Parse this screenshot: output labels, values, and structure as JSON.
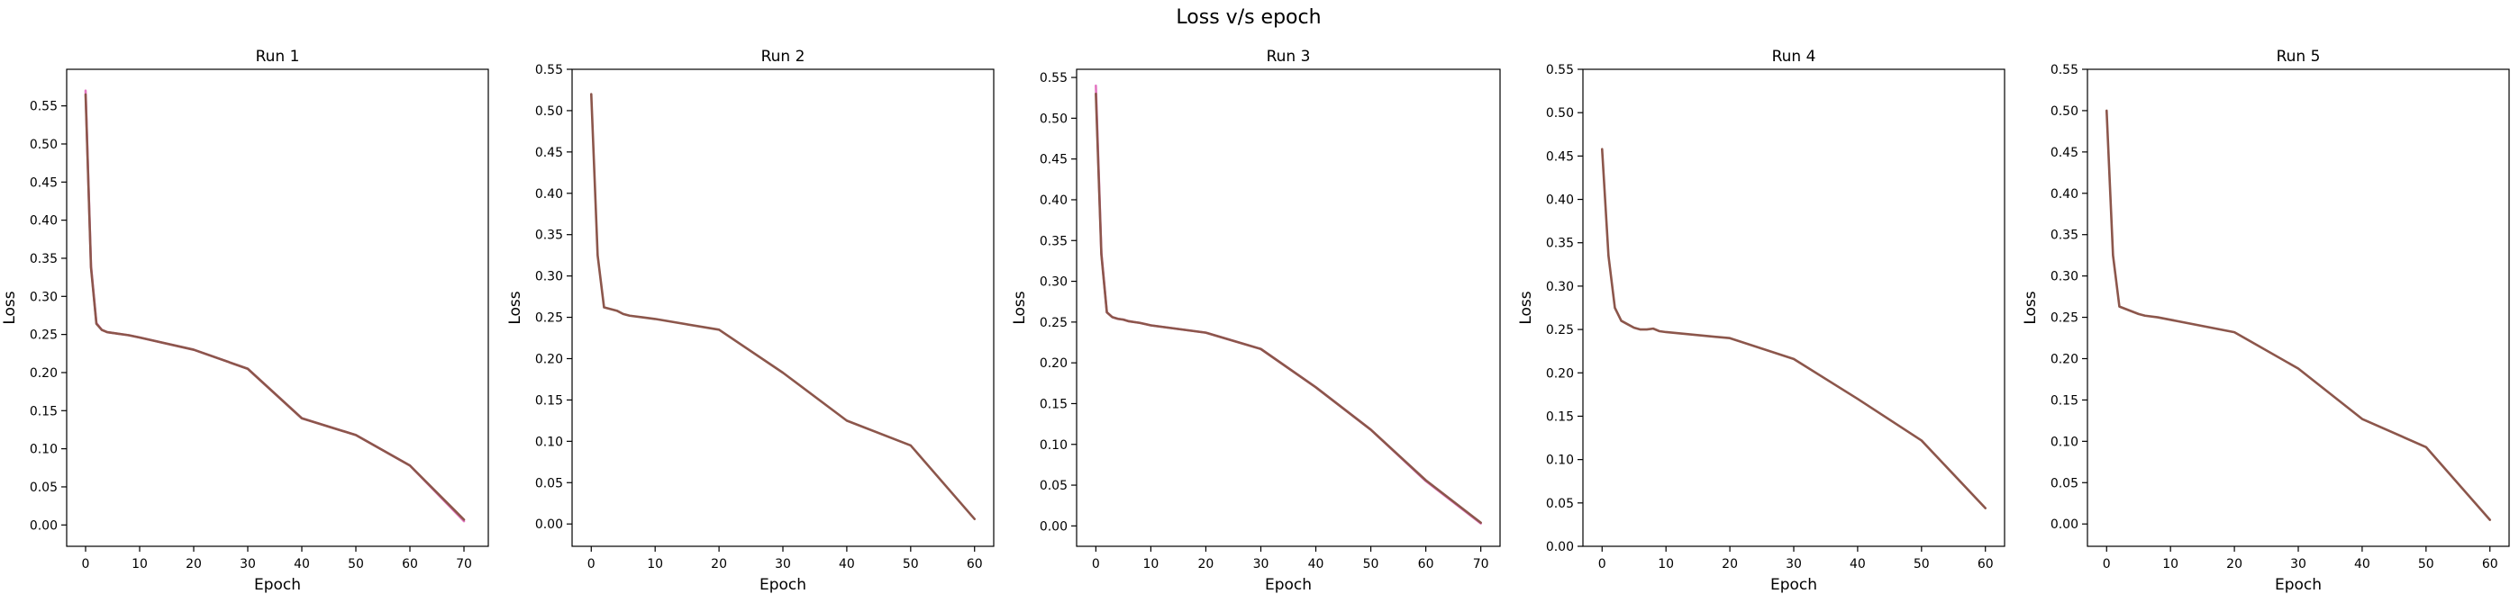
{
  "figure": {
    "title": "Loss v/s epoch"
  },
  "chart_data": [
    {
      "type": "line",
      "title": "Run 1",
      "xlabel": "Epoch",
      "ylabel": "Loss",
      "xlim": [
        -3.5,
        74.5
      ],
      "ylim": [
        -0.028,
        0.598
      ],
      "xticks": [
        0,
        10,
        20,
        30,
        40,
        50,
        60,
        70
      ],
      "yticks": [
        0.0,
        0.05,
        0.1,
        0.15,
        0.2,
        0.25,
        0.3,
        0.35,
        0.4,
        0.45,
        0.5,
        0.55
      ],
      "grid": false,
      "series": [
        {
          "color": "#e377c2",
          "x": [
            0,
            1,
            2,
            3,
            4,
            5,
            6,
            7,
            8,
            10,
            20,
            30,
            40,
            50,
            60,
            70
          ],
          "y": [
            0.57,
            0.34,
            0.265,
            0.256,
            0.253,
            0.252,
            0.251,
            0.25,
            0.249,
            0.246,
            0.23,
            0.205,
            0.14,
            0.118,
            0.078,
            0.005
          ]
        },
        {
          "color": "#8c564b",
          "x": [
            0,
            1,
            2,
            3,
            4,
            5,
            6,
            7,
            8,
            10,
            20,
            30,
            40,
            50,
            60,
            70
          ],
          "y": [
            0.565,
            0.338,
            0.264,
            0.256,
            0.253,
            0.252,
            0.251,
            0.25,
            0.249,
            0.246,
            0.23,
            0.205,
            0.14,
            0.118,
            0.078,
            0.007
          ]
        }
      ]
    },
    {
      "type": "line",
      "title": "Run 2",
      "xlabel": "Epoch",
      "ylabel": "Loss",
      "xlim": [
        -3.0,
        63.0
      ],
      "ylim": [
        -0.027,
        0.55
      ],
      "xticks": [
        0,
        10,
        20,
        30,
        40,
        50,
        60
      ],
      "yticks": [
        0.0,
        0.05,
        0.1,
        0.15,
        0.2,
        0.25,
        0.3,
        0.35,
        0.4,
        0.45,
        0.5,
        0.55
      ],
      "grid": false,
      "series": [
        {
          "color": "#8c564b",
          "x": [
            0,
            1,
            2,
            3,
            4,
            5,
            6,
            8,
            10,
            20,
            30,
            40,
            50,
            60
          ],
          "y": [
            0.52,
            0.325,
            0.262,
            0.26,
            0.258,
            0.254,
            0.252,
            0.25,
            0.248,
            0.235,
            0.183,
            0.125,
            0.095,
            0.006
          ]
        }
      ]
    },
    {
      "type": "line",
      "title": "Run 3",
      "xlabel": "Epoch",
      "ylabel": "Loss",
      "xlim": [
        -3.5,
        73.5
      ],
      "ylim": [
        -0.025,
        0.56
      ],
      "xticks": [
        0,
        10,
        20,
        30,
        40,
        50,
        60,
        70
      ],
      "yticks": [
        0.0,
        0.05,
        0.1,
        0.15,
        0.2,
        0.25,
        0.3,
        0.35,
        0.4,
        0.45,
        0.5,
        0.55
      ],
      "grid": false,
      "series": [
        {
          "color": "#e377c2",
          "x": [
            0,
            1,
            2,
            3,
            4,
            5,
            6,
            7,
            8,
            10,
            20,
            30,
            40,
            50,
            60,
            70
          ],
          "y": [
            0.54,
            0.335,
            0.262,
            0.256,
            0.254,
            0.253,
            0.251,
            0.25,
            0.249,
            0.246,
            0.237,
            0.217,
            0.17,
            0.118,
            0.055,
            0.003
          ]
        },
        {
          "color": "#8c564b",
          "x": [
            0,
            1,
            2,
            3,
            4,
            5,
            6,
            7,
            8,
            10,
            20,
            30,
            40,
            50,
            60,
            70
          ],
          "y": [
            0.53,
            0.333,
            0.262,
            0.256,
            0.254,
            0.253,
            0.251,
            0.25,
            0.249,
            0.246,
            0.237,
            0.217,
            0.17,
            0.118,
            0.056,
            0.004
          ]
        }
      ]
    },
    {
      "type": "line",
      "title": "Run 4",
      "xlabel": "Epoch",
      "ylabel": "Loss",
      "xlim": [
        -3.0,
        63.0
      ],
      "ylim": [
        0.0,
        0.55
      ],
      "xticks": [
        0,
        10,
        20,
        30,
        40,
        50,
        60
      ],
      "yticks": [
        0.0,
        0.05,
        0.1,
        0.15,
        0.2,
        0.25,
        0.3,
        0.35,
        0.4,
        0.45,
        0.5,
        0.55
      ],
      "grid": false,
      "series": [
        {
          "color": "#8c564b",
          "x": [
            0,
            1,
            2,
            3,
            4,
            5,
            6,
            7,
            8,
            9,
            10,
            20,
            30,
            40,
            50,
            60
          ],
          "y": [
            0.458,
            0.335,
            0.275,
            0.26,
            0.256,
            0.252,
            0.25,
            0.25,
            0.251,
            0.248,
            0.247,
            0.24,
            0.216,
            0.17,
            0.122,
            0.044
          ]
        }
      ]
    },
    {
      "type": "line",
      "title": "Run 5",
      "xlabel": "Epoch",
      "ylabel": "Loss",
      "xlim": [
        -3.0,
        63.0
      ],
      "ylim": [
        -0.027,
        0.55
      ],
      "xticks": [
        0,
        10,
        20,
        30,
        40,
        50,
        60
      ],
      "yticks": [
        0.0,
        0.05,
        0.1,
        0.15,
        0.2,
        0.25,
        0.3,
        0.35,
        0.4,
        0.45,
        0.5,
        0.55
      ],
      "grid": false,
      "series": [
        {
          "color": "#8c564b",
          "x": [
            0,
            1,
            2,
            3,
            4,
            5,
            6,
            8,
            10,
            20,
            30,
            40,
            50,
            60
          ],
          "y": [
            0.5,
            0.325,
            0.263,
            0.26,
            0.257,
            0.254,
            0.252,
            0.25,
            0.247,
            0.232,
            0.188,
            0.127,
            0.093,
            0.005
          ]
        }
      ]
    }
  ]
}
